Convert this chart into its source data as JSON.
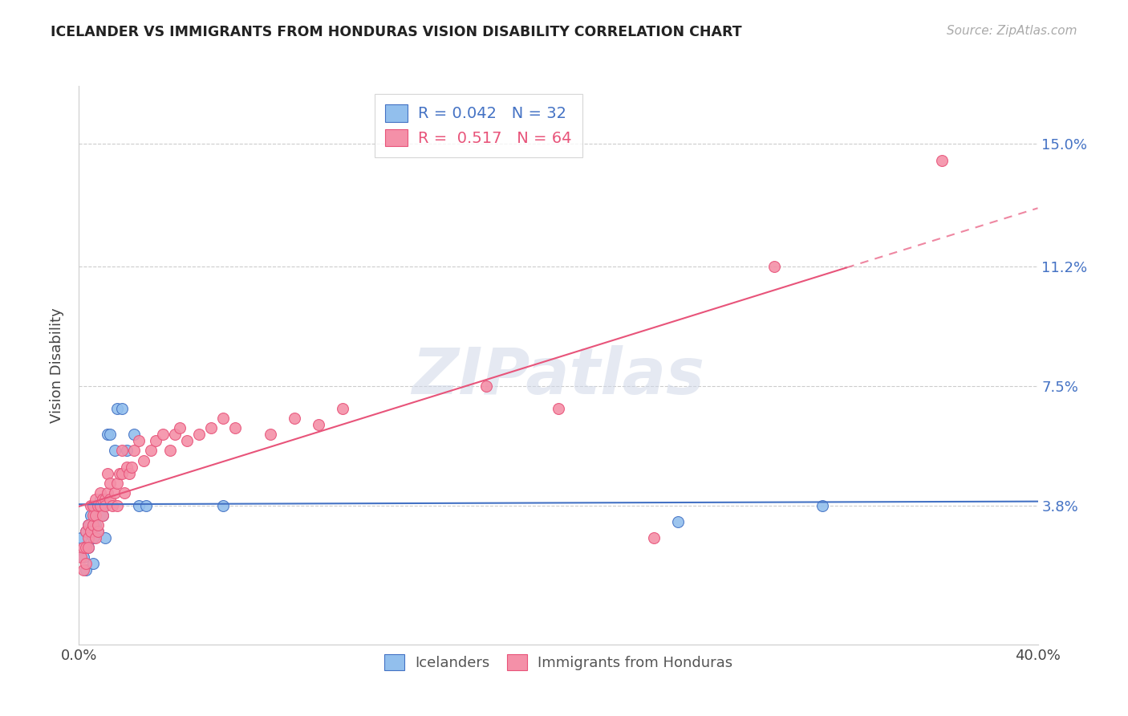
{
  "title": "ICELANDER VS IMMIGRANTS FROM HONDURAS VISION DISABILITY CORRELATION CHART",
  "source": "Source: ZipAtlas.com",
  "ylabel": "Vision Disability",
  "ytick_labels": [
    "15.0%",
    "11.2%",
    "7.5%",
    "3.8%"
  ],
  "ytick_values": [
    0.15,
    0.112,
    0.075,
    0.038
  ],
  "xlim": [
    0.0,
    0.4
  ],
  "ylim": [
    -0.005,
    0.168
  ],
  "color_blue": "#92BFED",
  "color_pink": "#F490A8",
  "line_blue": "#4472C4",
  "line_pink": "#E8547A",
  "ice_r": 0.042,
  "ice_n": 32,
  "hon_r": 0.517,
  "hon_n": 64,
  "icelanders_x": [
    0.001,
    0.002,
    0.003,
    0.003,
    0.004,
    0.004,
    0.005,
    0.005,
    0.006,
    0.006,
    0.006,
    0.007,
    0.007,
    0.008,
    0.008,
    0.009,
    0.009,
    0.01,
    0.01,
    0.011,
    0.012,
    0.013,
    0.015,
    0.016,
    0.018,
    0.02,
    0.023,
    0.025,
    0.028,
    0.06,
    0.25,
    0.31
  ],
  "icelanders_y": [
    0.028,
    0.022,
    0.03,
    0.018,
    0.032,
    0.025,
    0.03,
    0.035,
    0.028,
    0.02,
    0.038,
    0.032,
    0.038,
    0.03,
    0.038,
    0.04,
    0.035,
    0.035,
    0.038,
    0.028,
    0.06,
    0.06,
    0.055,
    0.068,
    0.068,
    0.055,
    0.06,
    0.038,
    0.038,
    0.038,
    0.033,
    0.038
  ],
  "honduras_x": [
    0.001,
    0.002,
    0.002,
    0.003,
    0.003,
    0.003,
    0.004,
    0.004,
    0.004,
    0.005,
    0.005,
    0.006,
    0.006,
    0.006,
    0.007,
    0.007,
    0.007,
    0.008,
    0.008,
    0.008,
    0.009,
    0.009,
    0.01,
    0.01,
    0.011,
    0.011,
    0.012,
    0.012,
    0.013,
    0.013,
    0.014,
    0.015,
    0.016,
    0.016,
    0.017,
    0.018,
    0.018,
    0.019,
    0.02,
    0.021,
    0.022,
    0.023,
    0.025,
    0.027,
    0.03,
    0.032,
    0.035,
    0.038,
    0.04,
    0.042,
    0.045,
    0.05,
    0.055,
    0.06,
    0.065,
    0.08,
    0.09,
    0.1,
    0.11,
    0.17,
    0.2,
    0.24,
    0.29,
    0.36
  ],
  "honduras_y": [
    0.022,
    0.025,
    0.018,
    0.025,
    0.03,
    0.02,
    0.028,
    0.032,
    0.025,
    0.03,
    0.038,
    0.032,
    0.035,
    0.038,
    0.028,
    0.035,
    0.04,
    0.03,
    0.038,
    0.032,
    0.038,
    0.042,
    0.04,
    0.035,
    0.04,
    0.038,
    0.042,
    0.048,
    0.04,
    0.045,
    0.038,
    0.042,
    0.045,
    0.038,
    0.048,
    0.048,
    0.055,
    0.042,
    0.05,
    0.048,
    0.05,
    0.055,
    0.058,
    0.052,
    0.055,
    0.058,
    0.06,
    0.055,
    0.06,
    0.062,
    0.058,
    0.06,
    0.062,
    0.065,
    0.062,
    0.06,
    0.065,
    0.063,
    0.068,
    0.075,
    0.068,
    0.028,
    0.112,
    0.145
  ]
}
